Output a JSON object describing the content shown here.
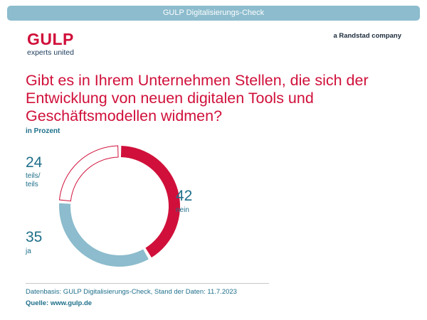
{
  "header": {
    "banner_title": "GULP Digitalisierungs-Check"
  },
  "brand": {
    "logo_word": "GULP",
    "tagline": "experts united",
    "company": "a Randstad company",
    "primary_color": "#d0103a",
    "secondary_color": "#8cbccd",
    "text_color": "#1e6f8a"
  },
  "question": "Gibt es in Ihrem Unternehmen Stellen, die sich der Entwicklung von neuen digitalen Tools und Geschäftsmodellen widmen?",
  "unit_label": "in Prozent",
  "chart_data": {
    "type": "pie",
    "title": "Gibt es in Ihrem Unternehmen Stellen, die sich der Entwicklung von neuen digitalen Tools und Geschäftsmodellen widmen?",
    "unit": "in Prozent",
    "slices": [
      {
        "label": "nein",
        "value": 42,
        "color": "#d0103a",
        "style": "filled"
      },
      {
        "label": "ja",
        "value": 35,
        "color": "#8cbccd",
        "style": "filled"
      },
      {
        "label": "teils/ teils",
        "value": 24,
        "color": "#d0103a",
        "style": "outline"
      }
    ]
  },
  "footer": {
    "note": "Datenbasis: GULP Digitalisierungs-Check, Stand der Daten: 11.7.2023",
    "source_label": "Quelle:",
    "source_url": "www.gulp.de"
  }
}
